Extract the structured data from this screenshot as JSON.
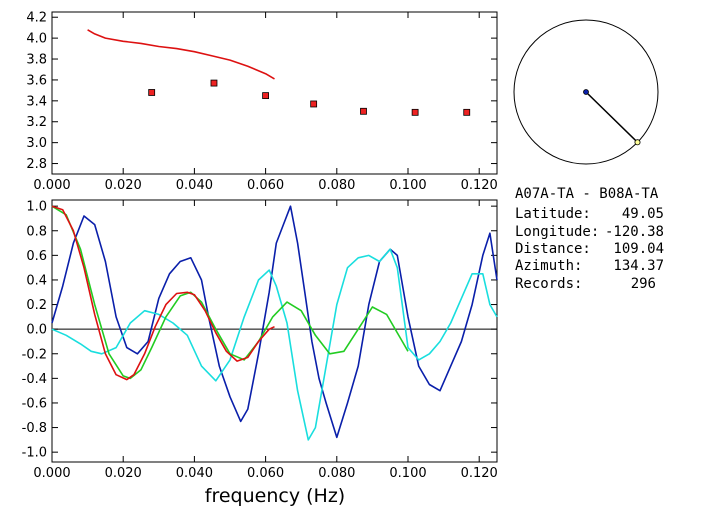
{
  "station_pair": "A07A-TA - B08A-TA",
  "info": [
    {
      "label": "Latitude:",
      "value": "49.05"
    },
    {
      "label": "Longitude:",
      "value": "-120.38"
    },
    {
      "label": "Distance:",
      "value": "109.04"
    },
    {
      "label": "Azimuth:",
      "value": "134.37"
    },
    {
      "label": "Records:",
      "value": "296"
    }
  ],
  "azimuth_deg": 134.37,
  "colors": {
    "red": "#dd1111",
    "blue": "#0a1faa",
    "cyan": "#19dede",
    "green": "#22cc22",
    "marker_fill": "#ee2222",
    "zero_line": "#000000",
    "station_tip": "#ffff99"
  },
  "chart_data": [
    {
      "type": "scatter",
      "xlim": [
        0,
        0.125
      ],
      "ylim": [
        2.7,
        4.25
      ],
      "x_ticks": [
        0,
        0.02,
        0.04,
        0.06,
        0.08,
        0.1,
        0.12
      ],
      "x_tick_labels": [
        "0.000",
        "0.020",
        "0.040",
        "0.060",
        "0.080",
        "0.100",
        "0.120"
      ],
      "y_ticks": [
        2.8,
        3.0,
        3.2,
        3.4,
        3.6,
        3.8,
        4.0,
        4.2
      ],
      "y_tick_labels": [
        "2.8",
        "3.0",
        "3.2",
        "3.4",
        "3.6",
        "3.8",
        "4.0",
        "4.2"
      ],
      "curve": {
        "x": [
          0.01,
          0.012,
          0.015,
          0.02,
          0.025,
          0.03,
          0.035,
          0.04,
          0.045,
          0.05,
          0.055,
          0.06,
          0.0625
        ],
        "y": [
          4.08,
          4.04,
          4.0,
          3.97,
          3.95,
          3.92,
          3.9,
          3.87,
          3.83,
          3.79,
          3.73,
          3.66,
          3.61
        ]
      },
      "points": {
        "x": [
          0.028,
          0.0455,
          0.06,
          0.0735,
          0.0875,
          0.102,
          0.1165
        ],
        "y": [
          3.48,
          3.57,
          3.45,
          3.37,
          3.3,
          3.29,
          3.29
        ]
      }
    },
    {
      "type": "line",
      "xlim": [
        0,
        0.125
      ],
      "ylim": [
        -1.08,
        1.05
      ],
      "xlabel": "frequency (Hz)",
      "x_ticks": [
        0,
        0.02,
        0.04,
        0.06,
        0.08,
        0.1,
        0.12
      ],
      "x_tick_labels": [
        "0.000",
        "0.020",
        "0.040",
        "0.060",
        "0.080",
        "0.100",
        "0.120"
      ],
      "y_ticks": [
        -1.0,
        -0.8,
        -0.6,
        -0.4,
        -0.2,
        0.0,
        0.2,
        0.4,
        0.6,
        0.8,
        1.0
      ],
      "y_tick_labels": [
        "-1.0",
        "-0.8",
        "-0.6",
        "-0.4",
        "-0.2",
        "0.0",
        "0.2",
        "0.4",
        "0.6",
        "0.8",
        "1.0"
      ],
      "series": [
        {
          "color_key": "blue",
          "x": [
            0,
            0.003,
            0.006,
            0.009,
            0.012,
            0.015,
            0.018,
            0.021,
            0.024,
            0.027,
            0.03,
            0.033,
            0.036,
            0.039,
            0.042,
            0.044,
            0.047,
            0.05,
            0.053,
            0.055,
            0.058,
            0.061,
            0.063,
            0.065,
            0.067,
            0.069,
            0.071,
            0.073,
            0.075,
            0.077,
            0.08,
            0.083,
            0.086,
            0.089,
            0.092,
            0.095,
            0.097,
            0.1,
            0.103,
            0.106,
            0.109,
            0.112,
            0.115,
            0.118,
            0.121,
            0.123,
            0.125
          ],
          "y": [
            0.05,
            0.35,
            0.7,
            0.92,
            0.85,
            0.55,
            0.1,
            -0.15,
            -0.2,
            -0.1,
            0.25,
            0.45,
            0.55,
            0.58,
            0.4,
            0.1,
            -0.3,
            -0.55,
            -0.75,
            -0.65,
            -0.2,
            0.3,
            0.7,
            0.85,
            1.0,
            0.7,
            0.3,
            -0.1,
            -0.4,
            -0.6,
            -0.88,
            -0.6,
            -0.3,
            0.2,
            0.55,
            0.65,
            0.6,
            0.1,
            -0.3,
            -0.45,
            -0.5,
            -0.3,
            -0.1,
            0.2,
            0.6,
            0.78,
            0.4
          ]
        },
        {
          "color_key": "cyan",
          "x": [
            0,
            0.004,
            0.008,
            0.011,
            0.014,
            0.018,
            0.022,
            0.026,
            0.03,
            0.034,
            0.038,
            0.042,
            0.046,
            0.05,
            0.054,
            0.058,
            0.061,
            0.063,
            0.066,
            0.069,
            0.072,
            0.074,
            0.077,
            0.08,
            0.083,
            0.086,
            0.089,
            0.092,
            0.095,
            0.097,
            0.1,
            0.103,
            0.106,
            0.109,
            0.112,
            0.115,
            0.118,
            0.121,
            0.123,
            0.125
          ],
          "y": [
            0,
            -0.05,
            -0.12,
            -0.18,
            -0.2,
            -0.15,
            0.05,
            0.15,
            0.12,
            0.05,
            -0.05,
            -0.3,
            -0.42,
            -0.25,
            0.1,
            0.4,
            0.48,
            0.35,
            0.05,
            -0.5,
            -0.9,
            -0.8,
            -0.3,
            0.2,
            0.5,
            0.58,
            0.6,
            0.55,
            0.65,
            0.5,
            -0.15,
            -0.25,
            -0.2,
            -0.1,
            0.05,
            0.25,
            0.45,
            0.45,
            0.2,
            0.1
          ]
        },
        {
          "color_key": "green",
          "x": [
            0,
            0.004,
            0.008,
            0.012,
            0.016,
            0.02,
            0.022,
            0.025,
            0.028,
            0.032,
            0.036,
            0.039,
            0.042,
            0.046,
            0.05,
            0.054,
            0.058,
            0.062,
            0.066,
            0.07,
            0.074,
            0.078,
            0.082,
            0.086,
            0.09,
            0.094,
            0.098,
            0.1
          ],
          "y": [
            1.0,
            0.93,
            0.65,
            0.2,
            -0.2,
            -0.38,
            -0.4,
            -0.33,
            -0.15,
            0.1,
            0.27,
            0.3,
            0.22,
            0.0,
            -0.2,
            -0.25,
            -0.1,
            0.1,
            0.22,
            0.15,
            -0.05,
            -0.2,
            -0.18,
            0.0,
            0.18,
            0.12,
            -0.08,
            -0.18
          ]
        },
        {
          "color_key": "red",
          "x": [
            0,
            0.003,
            0.006,
            0.009,
            0.012,
            0.015,
            0.018,
            0.021,
            0.023,
            0.026,
            0.029,
            0.032,
            0.035,
            0.038,
            0.04,
            0.043,
            0.046,
            0.049,
            0.052,
            0.055,
            0.058,
            0.061,
            0.0625
          ],
          "y": [
            1.0,
            0.97,
            0.8,
            0.5,
            0.12,
            -0.2,
            -0.37,
            -0.41,
            -0.37,
            -0.2,
            0.02,
            0.2,
            0.29,
            0.3,
            0.28,
            0.15,
            -0.03,
            -0.18,
            -0.26,
            -0.23,
            -0.1,
            0.0,
            0.02
          ]
        }
      ]
    }
  ]
}
